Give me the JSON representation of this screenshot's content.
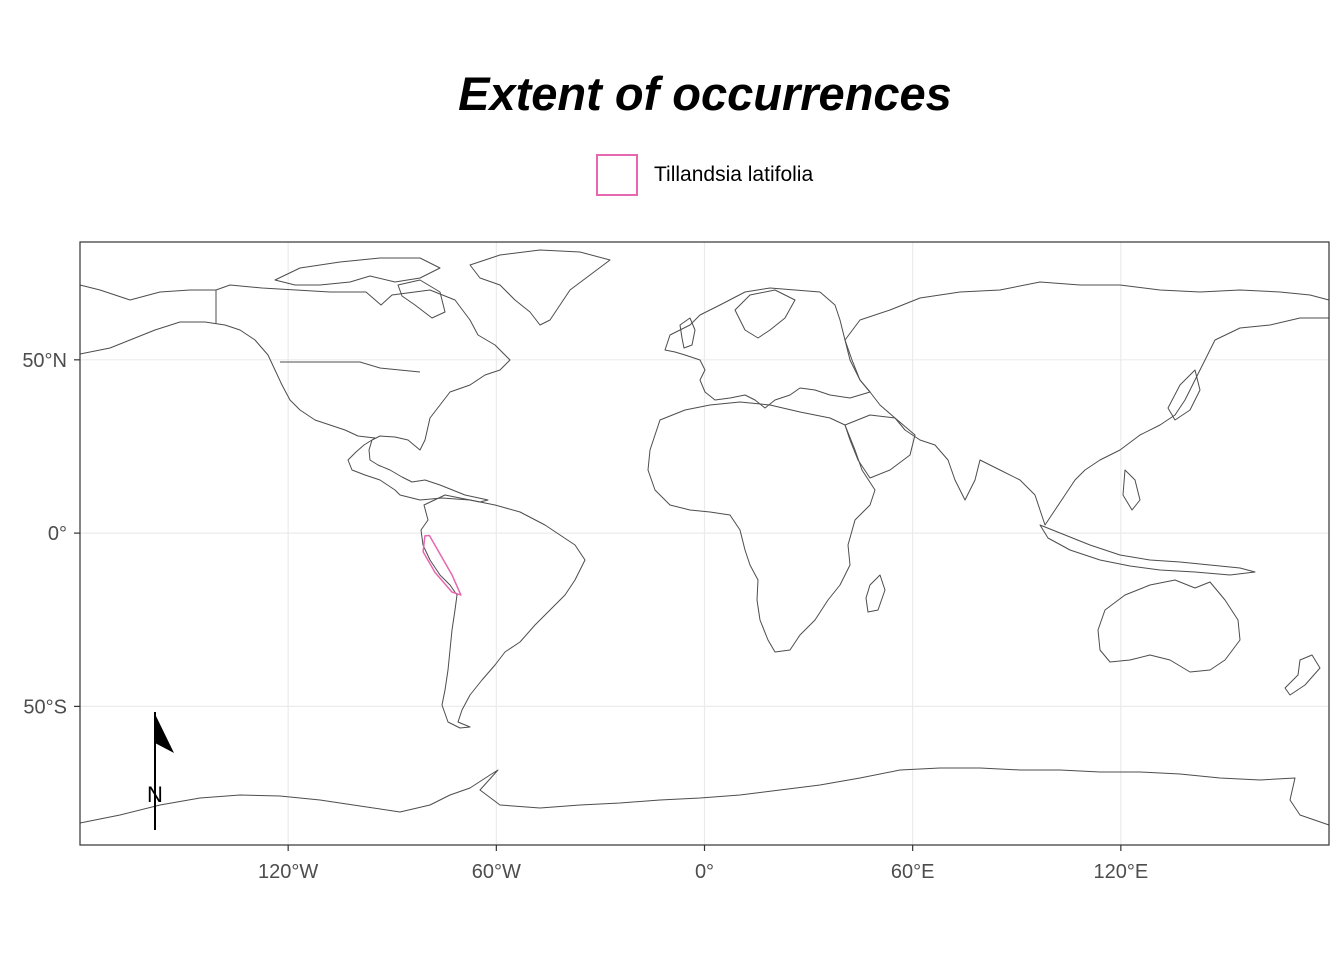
{
  "title": "Extent of occurrences",
  "legend": {
    "label": "Tillandsia latifolia",
    "color": "#e667af"
  },
  "map": {
    "projection": "longitude-latitude",
    "lon_range": [
      -180,
      180
    ],
    "lat_range": [
      -90,
      84
    ],
    "grid": true,
    "land_outline_color": "#4d4d4d",
    "x_ticks": [
      {
        "lon": -120,
        "label": "120°W"
      },
      {
        "lon": -60,
        "label": "60°W"
      },
      {
        "lon": 0,
        "label": "0°"
      },
      {
        "lon": 60,
        "label": "60°E"
      },
      {
        "lon": 120,
        "label": "120°E"
      }
    ],
    "y_ticks": [
      {
        "lat": 50,
        "label": "50°N"
      },
      {
        "lat": 0,
        "label": "0°"
      },
      {
        "lat": -50,
        "label": "50°S"
      }
    ],
    "extent_polygon": [
      [
        -80.6,
        -0.8
      ],
      [
        -79.3,
        -0.7
      ],
      [
        -72.8,
        -12.0
      ],
      [
        -70.2,
        -17.9
      ],
      [
        -72.8,
        -17.0
      ],
      [
        -77.7,
        -11.3
      ],
      [
        -81.1,
        -5.4
      ]
    ],
    "north_arrow": {
      "label": "N"
    }
  }
}
